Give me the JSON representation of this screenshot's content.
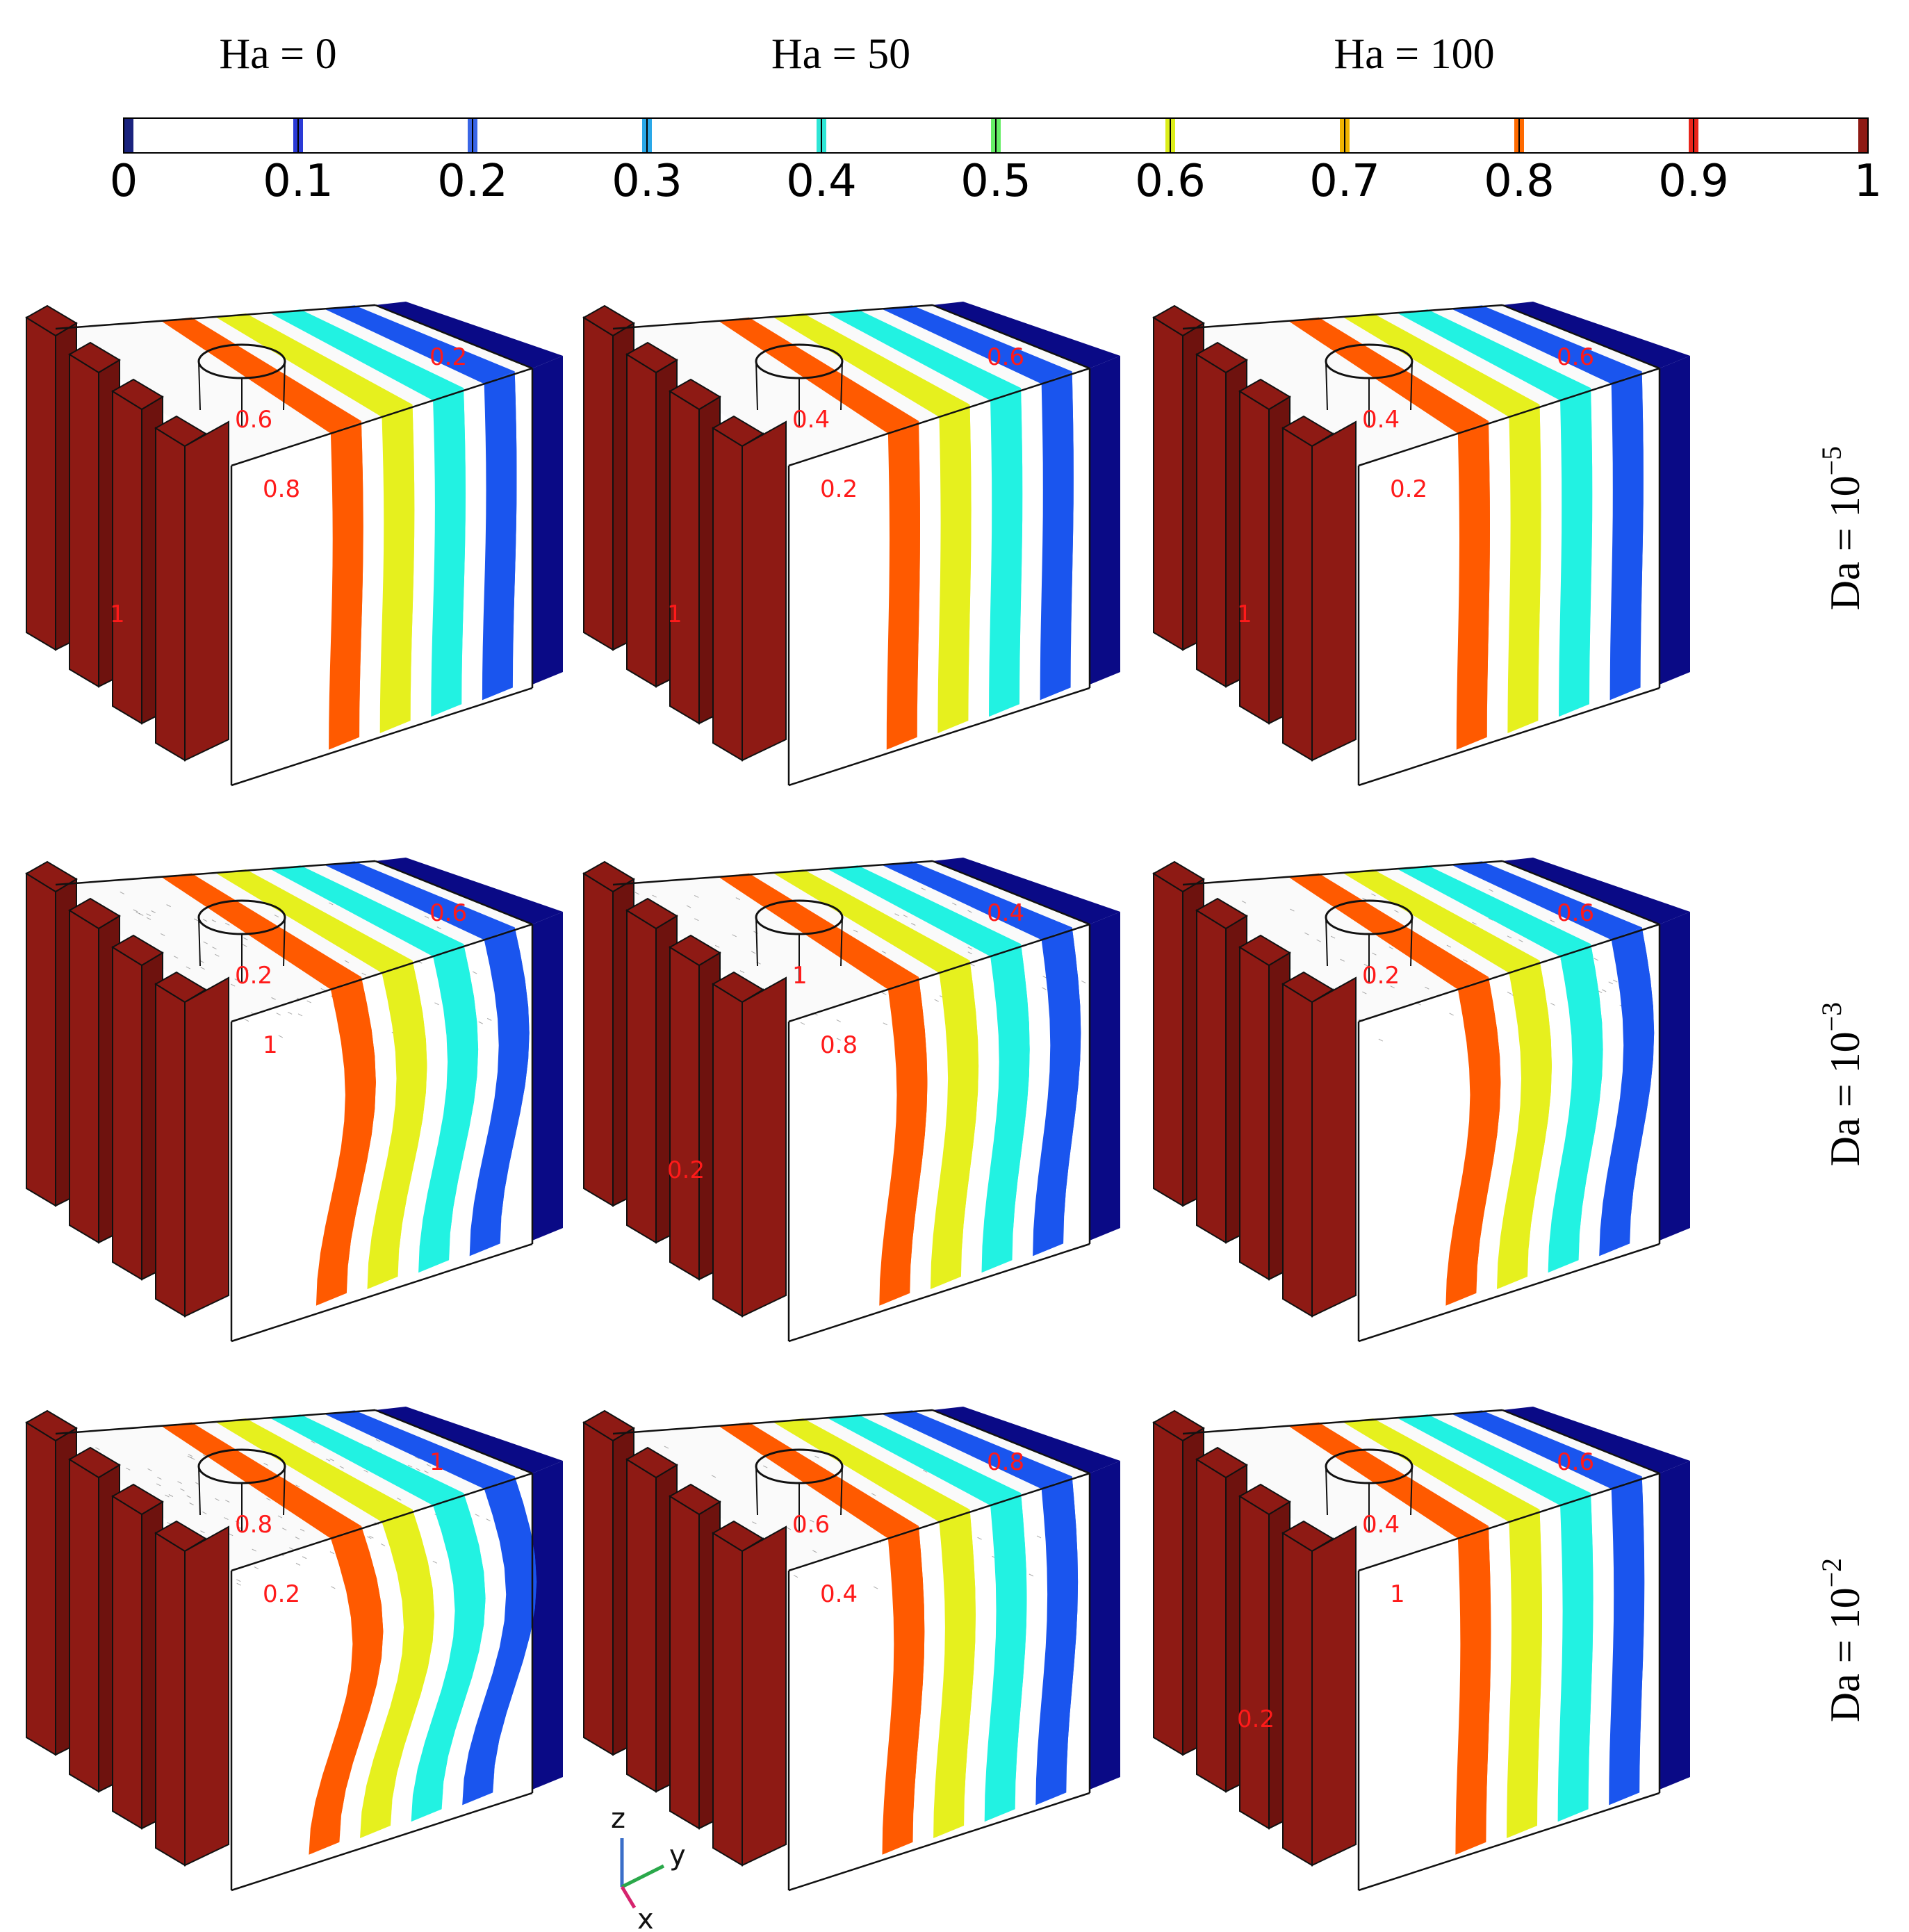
{
  "figure": {
    "column_titles": [
      "Ha = 0",
      "Ha = 50",
      "Ha = 100"
    ],
    "row_titles": [
      {
        "base": "Da = 10",
        "exp": "−5"
      },
      {
        "base": "Da = 10",
        "exp": "−3"
      },
      {
        "base": "Da = 10",
        "exp": "−2"
      }
    ],
    "colorbar": {
      "ticks": [
        "0",
        "0.1",
        "0.2",
        "0.3",
        "0.4",
        "0.5",
        "0.6",
        "0.7",
        "0.8",
        "0.9",
        "1"
      ],
      "tick_colors": [
        "#1a237e",
        "#2a3ad6",
        "#3a66e6",
        "#2aa8e8",
        "#2ee6d6",
        "#66ee66",
        "#dcee1a",
        "#f0b400",
        "#ff6a00",
        "#e8241a",
        "#8e1a14"
      ]
    },
    "colors": {
      "heater": "#8e1a14",
      "heater_dark": "#6e120e",
      "iso_orange": "#ff5a00",
      "iso_yellow": "#e6f01e",
      "iso_cyan": "#22f2e2",
      "iso_blue": "#1a55ee",
      "wall_navy": "#0a0a86",
      "label": "#ff1a1a"
    },
    "panels": [
      {
        "id": "r1c1",
        "wave": 0.04,
        "labels": [
          "0.2",
          "0.6",
          "0.8",
          "1"
        ]
      },
      {
        "id": "r1c2",
        "wave": 0.03,
        "labels": [
          "0.6",
          "0.4",
          "0.2",
          "1"
        ]
      },
      {
        "id": "r1c3",
        "wave": 0.03,
        "labels": [
          "0.6",
          "0.4",
          "0.2",
          "1"
        ]
      },
      {
        "id": "r2c1",
        "wave": 0.3,
        "labels": [
          "0.6",
          "0.2",
          "1"
        ]
      },
      {
        "id": "r2c2",
        "wave": 0.18,
        "labels": [
          "0.4",
          "1",
          "0.8",
          "0.2"
        ]
      },
      {
        "id": "r2c3",
        "wave": 0.25,
        "labels": [
          "0.6",
          "0.2"
        ]
      },
      {
        "id": "r3c1",
        "wave": 0.45,
        "labels": [
          "1",
          "0.8",
          "0.2"
        ]
      },
      {
        "id": "r3c2",
        "wave": 0.12,
        "labels": [
          "0.8",
          "0.6",
          "0.4"
        ]
      },
      {
        "id": "r3c3",
        "wave": 0.05,
        "labels": [
          "0.6",
          "0.4",
          "1",
          "0.2"
        ]
      }
    ],
    "axes_triad": {
      "z": "z",
      "y": "y",
      "x": "x"
    }
  }
}
